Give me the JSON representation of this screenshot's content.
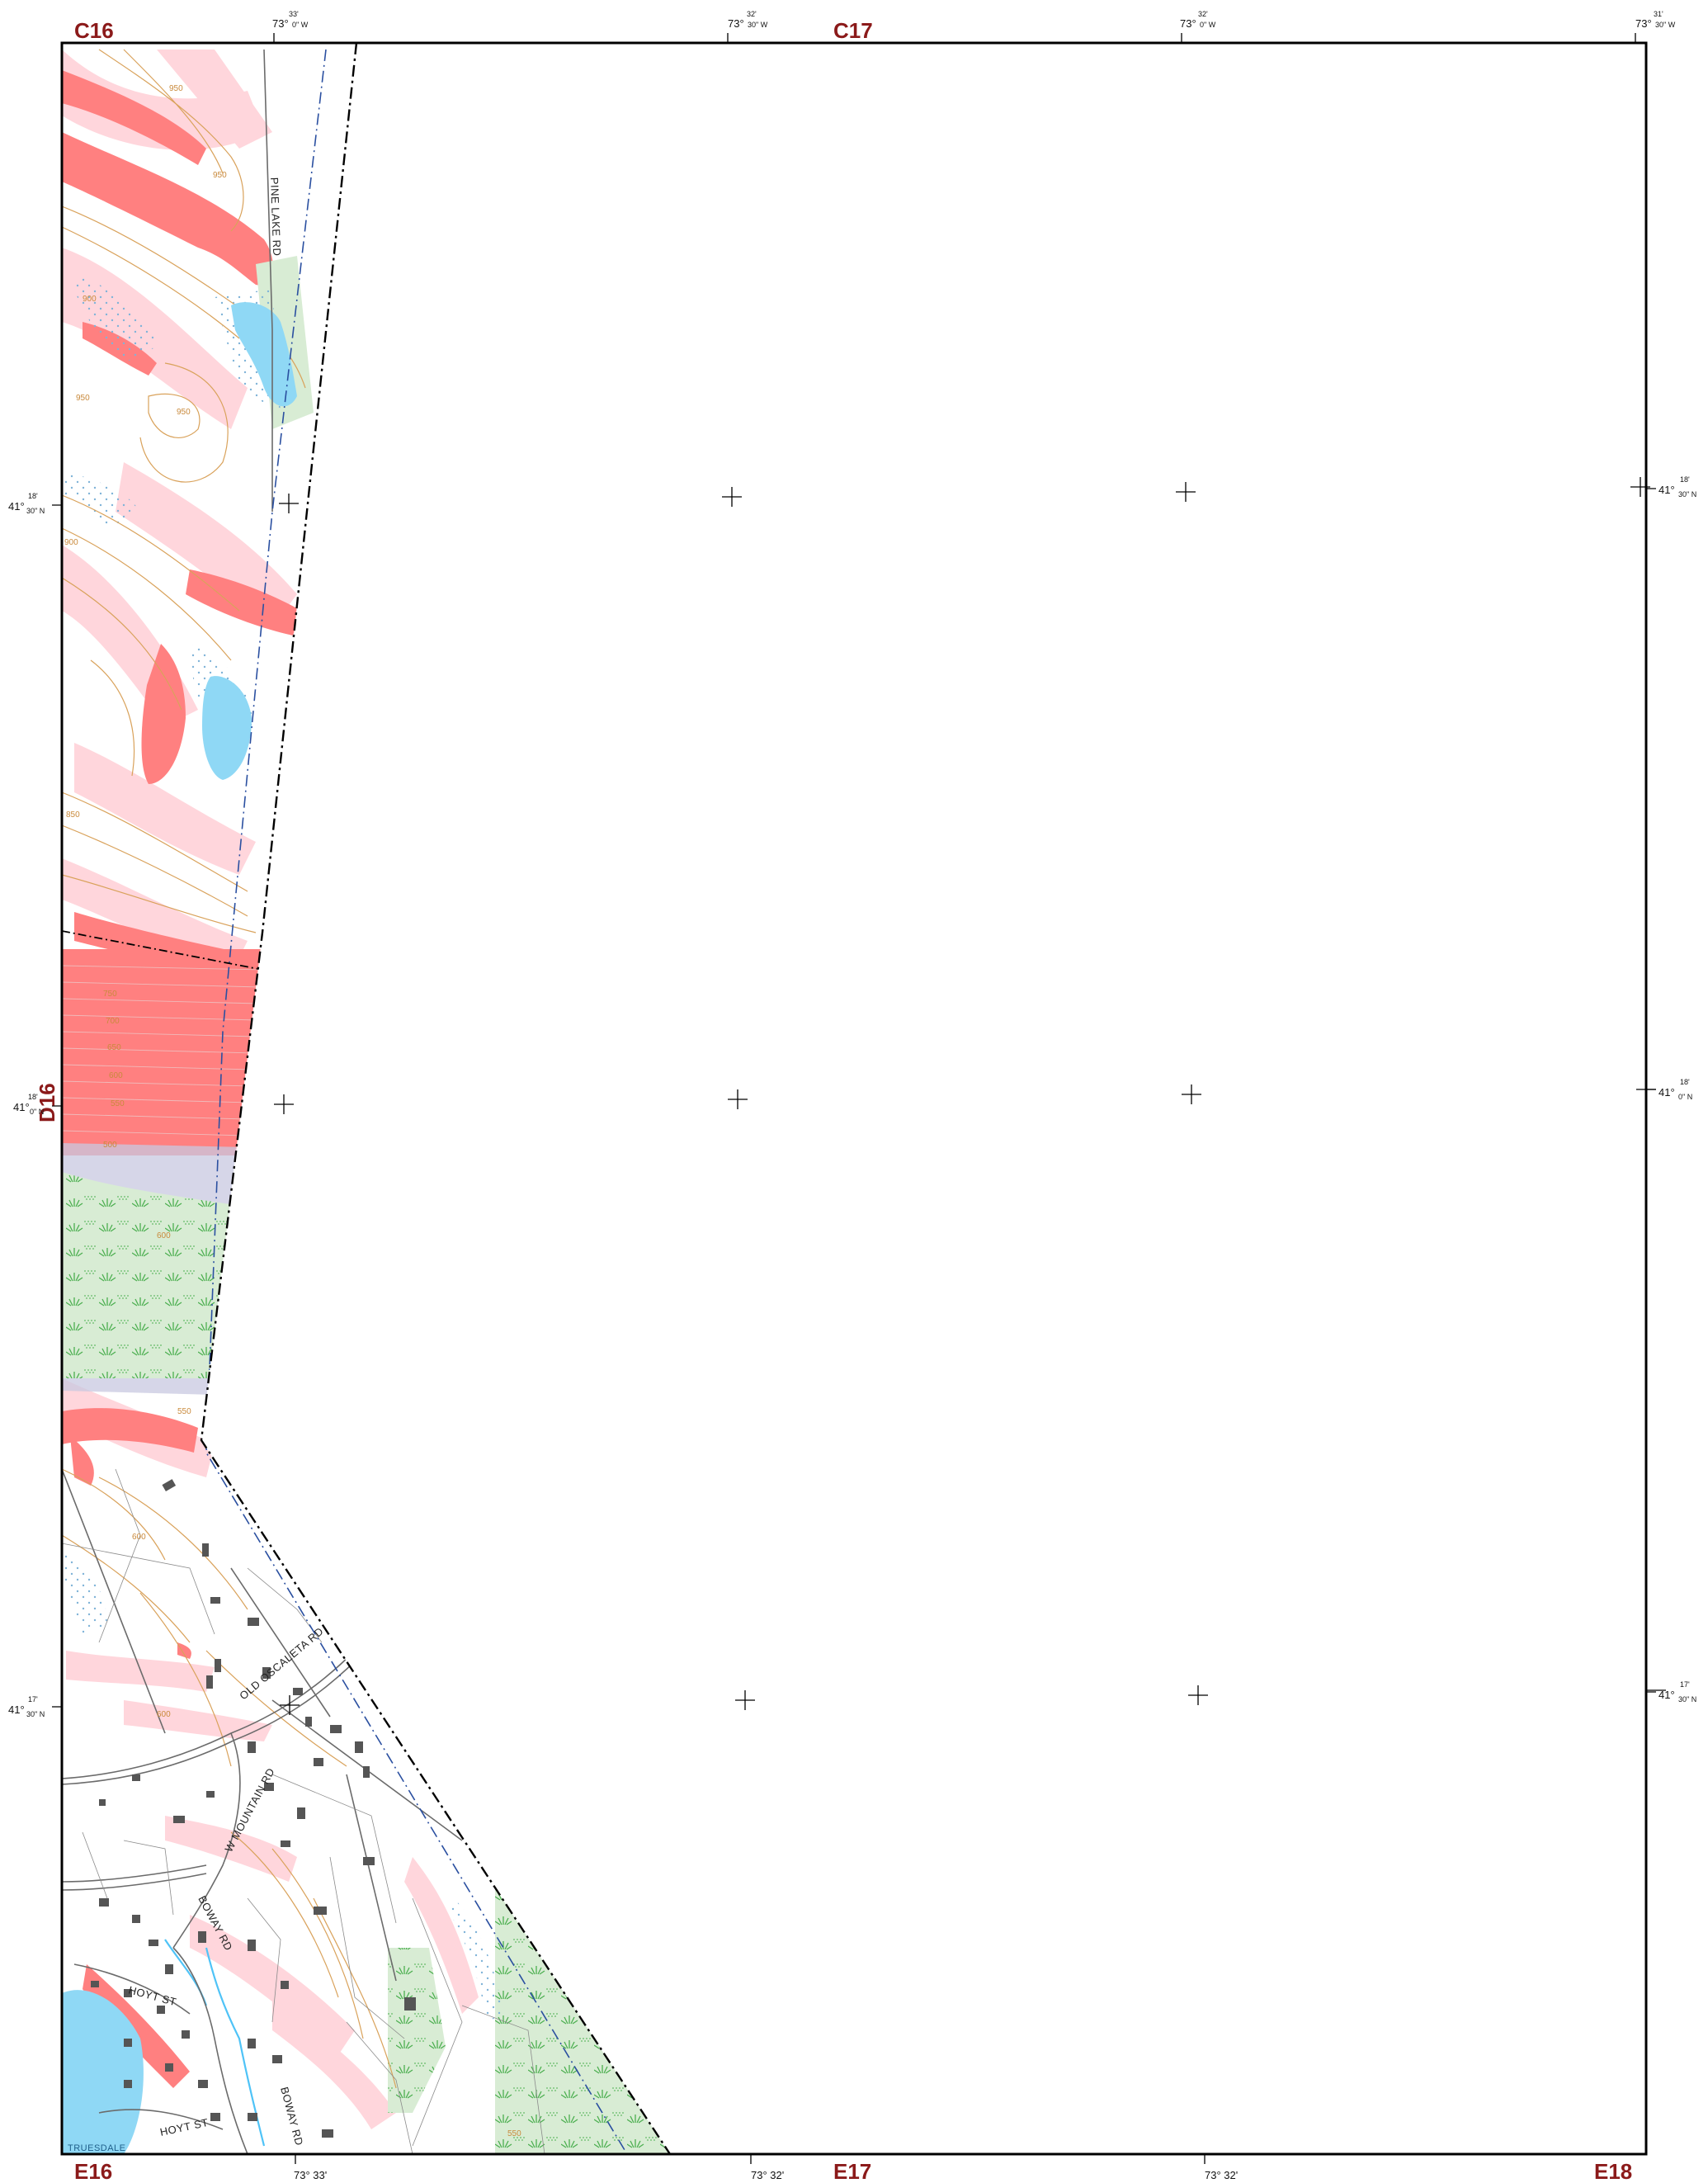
{
  "sheets": {
    "top_left": "C16",
    "top_mid": "C17",
    "bottom_left": "E16",
    "bottom_mid": "E17",
    "bottom_right": "E18",
    "left_mid": "D16"
  },
  "longitudes_top": [
    {
      "deg": "73°",
      "min": "33'",
      "sec": "0\" W"
    },
    {
      "deg": "73°",
      "min": "32'",
      "sec": "30\" W"
    },
    {
      "deg": "73°",
      "min": "32'",
      "sec": "0\" W"
    },
    {
      "deg": "73°",
      "min": "31'",
      "sec": "30\" W"
    }
  ],
  "longitudes_bottom": [
    {
      "deg": "73° 33'"
    },
    {
      "deg": "73° 32'"
    },
    {
      "deg": "73° 32'"
    }
  ],
  "latitudes_left": [
    {
      "deg": "41°",
      "min": "18'",
      "sec": "30\" N"
    },
    {
      "deg": "41°",
      "min": "18'",
      "sec": "0\" N"
    },
    {
      "deg": "41°",
      "min": "17'",
      "sec": "30\" N"
    }
  ],
  "latitudes_right": [
    {
      "deg": "41°",
      "min": "18'",
      "sec": "30\" N"
    },
    {
      "deg": "41°",
      "min": "18'",
      "sec": "0\" N"
    },
    {
      "deg": "41°",
      "min": "17'",
      "sec": "30\" N"
    }
  ],
  "roads": {
    "pine_lake": "PINE LAKE RD",
    "old_oscaleta": "OLD OSCALETA RD",
    "w_mountain": "W MOUNTAIN RD",
    "boway_1": "BOWAY RD",
    "boway_2": "BOWAY RD",
    "hoyt_1": "HOYT ST",
    "hoyt_2": "HOYT ST",
    "truesdale": "TRUESDALE"
  },
  "elevations": [
    "950",
    "950",
    "900",
    "950",
    "950",
    "900",
    "850",
    "750",
    "700",
    "650",
    "600",
    "550",
    "500",
    "600",
    "600",
    "550",
    "600",
    "550"
  ],
  "colors": {
    "steep_slope": "#ff8080",
    "moderate_slope": "#ffd6dc",
    "water": "#8fd8f5",
    "wetland": "#d8ecd4",
    "wetland_symbol": "#4caf50",
    "contour": "#d9a25b",
    "border": "#000000",
    "building": "#555555",
    "sheet_label": "#8b1a1a"
  }
}
